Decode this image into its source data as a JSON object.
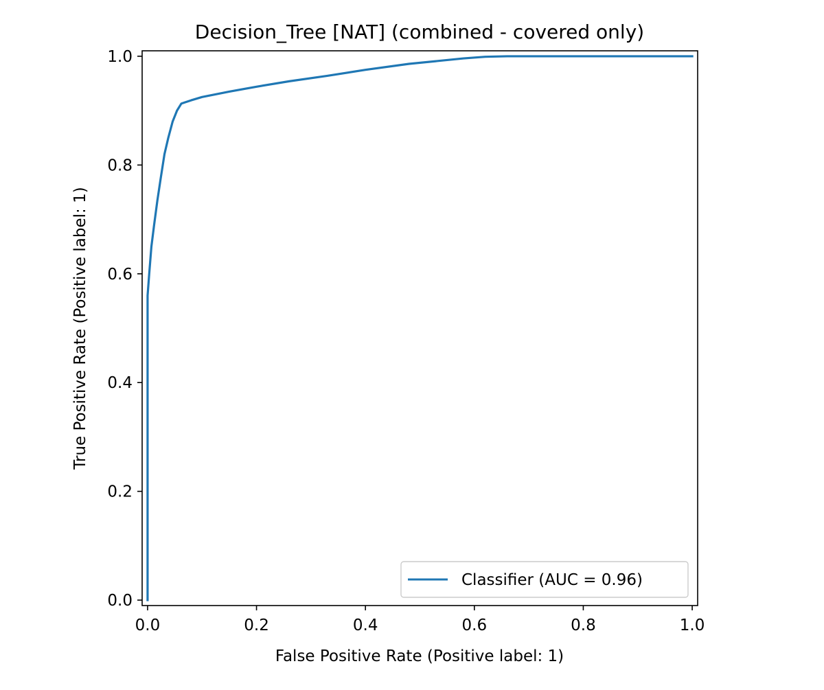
{
  "chart_data": {
    "type": "line",
    "title": "Decision_Tree [NAT] (combined - covered only)",
    "xlabel": "False Positive Rate (Positive label: 1)",
    "ylabel": "True Positive Rate (Positive label: 1)",
    "xlim": [
      -0.01,
      1.01
    ],
    "ylim": [
      -0.01,
      1.01
    ],
    "xticks": [
      "0.0",
      "0.2",
      "0.4",
      "0.6",
      "0.8",
      "1.0"
    ],
    "yticks": [
      "0.0",
      "0.2",
      "0.4",
      "0.6",
      "0.8",
      "1.0"
    ],
    "grid": false,
    "legend_position": "bottom-right",
    "series": [
      {
        "name": "Classifier (AUC = 0.96)",
        "color": "#1f77b4",
        "x": [
          0.0,
          0.0,
          0.003,
          0.007,
          0.012,
          0.018,
          0.024,
          0.031,
          0.038,
          0.046,
          0.054,
          0.062,
          0.068,
          0.08,
          0.1,
          0.15,
          0.2,
          0.26,
          0.33,
          0.4,
          0.48,
          0.58,
          0.62,
          0.66,
          1.0
        ],
        "y": [
          0.0,
          0.56,
          0.6,
          0.65,
          0.69,
          0.735,
          0.775,
          0.82,
          0.85,
          0.88,
          0.9,
          0.913,
          0.915,
          0.919,
          0.925,
          0.935,
          0.944,
          0.954,
          0.964,
          0.975,
          0.986,
          0.996,
          0.999,
          1.0,
          1.0
        ]
      }
    ]
  }
}
